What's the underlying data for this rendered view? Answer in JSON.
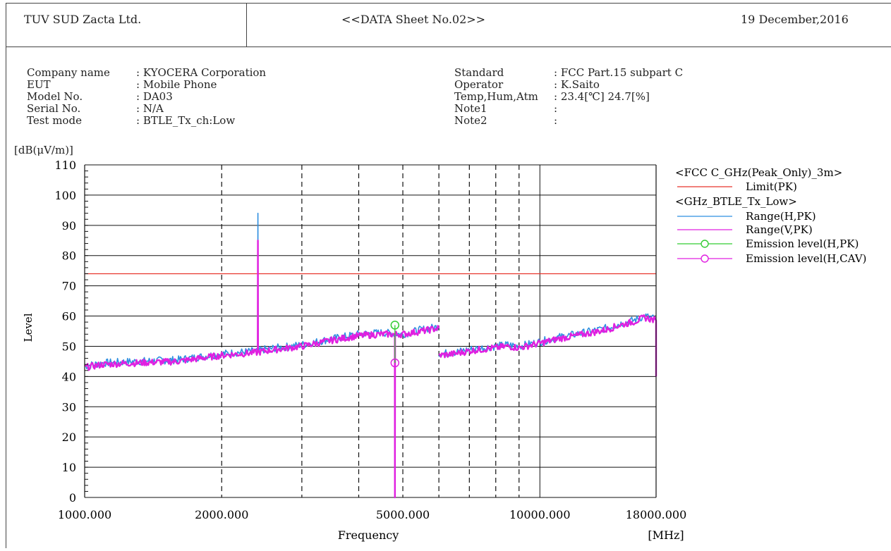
{
  "header": {
    "company": "TUV SUD Zacta Ltd.",
    "sheet": "<<DATA Sheet No.02>>",
    "date": "19 December,2016"
  },
  "info_left": [
    {
      "label": "Company name",
      "value": ": KYOCERA Corporation"
    },
    {
      "label": "EUT",
      "value": ": Mobile Phone"
    },
    {
      "label": "Model No.",
      "value": ": DA03"
    },
    {
      "label": "Serial No.",
      "value": ": N/A"
    },
    {
      "label": "Test mode",
      "value": ": BTLE_Tx_ch:Low"
    }
  ],
  "info_right": [
    {
      "label": "Standard",
      "value": ": FCC Part.15 subpart C"
    },
    {
      "label": "Operator",
      "value": ": K.Saito"
    },
    {
      "label": "Temp,Hum,Atm",
      "value": ": 23.4[℃] 24.7[%]"
    },
    {
      "label": "Note1",
      "value": ":"
    },
    {
      "label": "Note2",
      "value": ":"
    }
  ],
  "colors": {
    "limit": "#e8342c",
    "range_h": "#2f8fe0",
    "range_v": "#e020e0",
    "emission_pk": "#33cc33",
    "emission_cav": "#e020e0"
  },
  "chart_data": {
    "type": "line",
    "ylabel": "Level",
    "yunit": "[dB(μV/m)]",
    "xlabel": "Frequency",
    "xunit": "[MHz]",
    "xscale": "log",
    "xlim": [
      1000,
      18000
    ],
    "ylim": [
      0,
      110
    ],
    "yticks": [
      0,
      10,
      20,
      30,
      40,
      50,
      60,
      70,
      80,
      90,
      100,
      110
    ],
    "xtick_labels": [
      {
        "value": 1000,
        "label": "1000.000"
      },
      {
        "value": 2000,
        "label": "2000.000"
      },
      {
        "value": 5000,
        "label": "5000.000"
      },
      {
        "value": 10000,
        "label": "10000.000"
      },
      {
        "value": 18000,
        "label": "18000.000"
      }
    ],
    "grid_dashed_x": [
      2000,
      3000,
      4000,
      5000,
      6000,
      7000,
      8000,
      9000
    ],
    "grid_solid_x": [
      10000
    ],
    "legend_position": "right",
    "legend": {
      "group1_title": "<FCC C_GHz(Peak_Only)_3m>",
      "group2_title": "<GHz_BTLE_Tx_Low>",
      "items": [
        {
          "key": "limit",
          "label": "Limit(PK)"
        },
        {
          "key": "range_h",
          "label": "Range(H,PK)"
        },
        {
          "key": "range_v",
          "label": "Range(V,PK)"
        },
        {
          "key": "emission_pk",
          "label": "Emission level(H,PK)"
        },
        {
          "key": "emission_cav",
          "label": "Emission level(H,CAV)"
        }
      ]
    },
    "limit": {
      "name": "Limit(PK)",
      "value": 74
    },
    "series": [
      {
        "name": "Range(H,PK)",
        "key": "range_h",
        "segments": [
          {
            "x": [
              1000,
              1100,
              1300,
              1600,
              2000,
              2400,
              2402,
              2404,
              2500,
              3000,
              3500,
              4000,
              4500,
              5000,
              5500,
              6000
            ],
            "y": [
              43.5,
              44.5,
              45,
              45.5,
              47.5,
              48.5,
              94,
              48.5,
              49,
              50.5,
              52.5,
              54,
              54.5,
              54,
              55.5,
              56.5
            ]
          },
          {
            "x": [
              6000,
              6500,
              7000,
              7500,
              8000,
              8500,
              9000,
              10000,
              11000,
              12000,
              13000,
              14000,
              15000,
              16000,
              17000,
              18000
            ],
            "y": [
              47.5,
              48,
              49,
              49.5,
              50,
              50.5,
              50,
              51.5,
              53,
              54,
              55,
              56,
              57.5,
              58.5,
              60,
              59
            ]
          }
        ]
      },
      {
        "name": "Range(V,PK)",
        "key": "range_v",
        "segments": [
          {
            "x": [
              1000,
              1100,
              1300,
              1600,
              2000,
              2400,
              2402,
              2404,
              2500,
              3000,
              3500,
              4000,
              4500,
              4800,
              4804,
              4808,
              5000,
              5500,
              6000
            ],
            "y": [
              43,
              44,
              44.5,
              45,
              47,
              48,
              85,
              48,
              48.5,
              50,
              52,
              53.5,
              54,
              54,
              0,
              54,
              54,
              55,
              56
            ]
          },
          {
            "x": [
              6000,
              6500,
              7000,
              7500,
              8000,
              8500,
              9000,
              10000,
              11000,
              12000,
              13000,
              14000,
              15000,
              16000,
              17000,
              18000,
              18000
            ],
            "y": [
              47,
              47.5,
              48.5,
              49,
              49.5,
              50,
              49.5,
              51,
              52.5,
              53.5,
              54.5,
              55.5,
              57,
              58,
              59.5,
              58.5,
              40
            ]
          }
        ]
      }
    ],
    "emissions": [
      {
        "name": "Emission level(H,PK)",
        "key": "emission_pk",
        "x": 4804,
        "y": 57
      },
      {
        "name": "Emission level(H,CAV)",
        "key": "emission_cav",
        "x": 4804,
        "y": 44.5
      }
    ]
  }
}
